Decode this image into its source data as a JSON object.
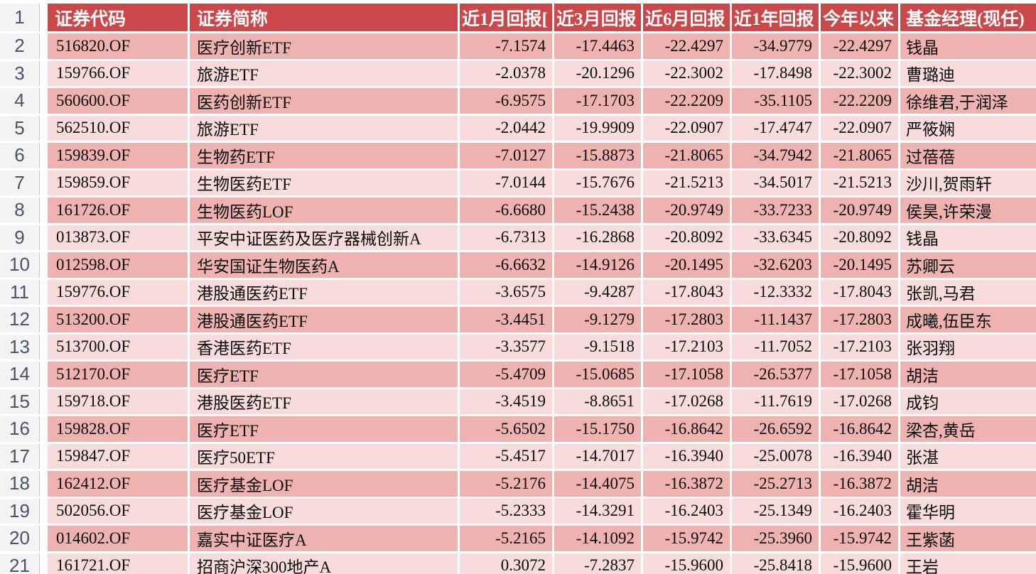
{
  "colors": {
    "header_bg": "#cb474a",
    "row_dark": "#eeb3b1",
    "row_light": "#f8dcdb",
    "gutter_bg": "#f3f3f4",
    "gutter_border": "#c9c9cb",
    "row_number_color": "#49536a"
  },
  "header_row_number": "1",
  "columns": [
    "证券代码",
    "证券简称",
    "近1月回报[",
    "近3月回报",
    "近6月回报",
    "近1年回报",
    "今年以来",
    "基金经理(现任)"
  ],
  "rows": [
    {
      "n": "2",
      "code": "516820.OF",
      "name": "医疗创新ETF",
      "m1": "-7.1574",
      "m3": "-17.4463",
      "m6": "-22.4297",
      "y1": "-34.9779",
      "ytd": "-22.4297",
      "manager": "钱晶"
    },
    {
      "n": "3",
      "code": "159766.OF",
      "name": "旅游ETF",
      "m1": "-2.0378",
      "m3": "-20.1296",
      "m6": "-22.3002",
      "y1": "-17.8498",
      "ytd": "-22.3002",
      "manager": "曹璐迪"
    },
    {
      "n": "4",
      "code": "560600.OF",
      "name": "医药创新ETF",
      "m1": "-6.9575",
      "m3": "-17.1703",
      "m6": "-22.2209",
      "y1": "-35.1105",
      "ytd": "-22.2209",
      "manager": "徐维君,于润泽"
    },
    {
      "n": "5",
      "code": "562510.OF",
      "name": "旅游ETF",
      "m1": "-2.0442",
      "m3": "-19.9909",
      "m6": "-22.0907",
      "y1": "-17.4747",
      "ytd": "-22.0907",
      "manager": "严筱娴"
    },
    {
      "n": "6",
      "code": "159839.OF",
      "name": "生物药ETF",
      "m1": "-7.0127",
      "m3": "-15.8873",
      "m6": "-21.8065",
      "y1": "-34.7942",
      "ytd": "-21.8065",
      "manager": "过蓓蓓"
    },
    {
      "n": "7",
      "code": "159859.OF",
      "name": "生物医药ETF",
      "m1": "-7.0144",
      "m3": "-15.7676",
      "m6": "-21.5213",
      "y1": "-34.5017",
      "ytd": "-21.5213",
      "manager": "沙川,贺雨轩"
    },
    {
      "n": "8",
      "code": "161726.OF",
      "name": "生物医药LOF",
      "m1": "-6.6680",
      "m3": "-15.2438",
      "m6": "-20.9749",
      "y1": "-33.7233",
      "ytd": "-20.9749",
      "manager": "侯昊,许荣漫"
    },
    {
      "n": "9",
      "code": "013873.OF",
      "name": "平安中证医药及医疗器械创新A",
      "m1": "-6.7313",
      "m3": "-16.2868",
      "m6": "-20.8092",
      "y1": "-33.6345",
      "ytd": "-20.8092",
      "manager": "钱晶"
    },
    {
      "n": "10",
      "code": "012598.OF",
      "name": "华安国证生物医药A",
      "m1": "-6.6632",
      "m3": "-14.9126",
      "m6": "-20.1495",
      "y1": "-32.6203",
      "ytd": "-20.1495",
      "manager": "苏卿云"
    },
    {
      "n": "11",
      "code": "159776.OF",
      "name": "港股通医药ETF",
      "m1": "-3.6575",
      "m3": "-9.4287",
      "m6": "-17.8043",
      "y1": "-12.3332",
      "ytd": "-17.8043",
      "manager": "张凯,马君"
    },
    {
      "n": "12",
      "code": "513200.OF",
      "name": "港股通医药ETF",
      "m1": "-3.4451",
      "m3": "-9.1279",
      "m6": "-17.2803",
      "y1": "-11.1437",
      "ytd": "-17.2803",
      "manager": "成曦,伍臣东"
    },
    {
      "n": "13",
      "code": "513700.OF",
      "name": "香港医药ETF",
      "m1": "-3.3577",
      "m3": "-9.1518",
      "m6": "-17.2103",
      "y1": "-11.7052",
      "ytd": "-17.2103",
      "manager": "张羽翔"
    },
    {
      "n": "14",
      "code": "512170.OF",
      "name": "医疗ETF",
      "m1": "-5.4709",
      "m3": "-15.0685",
      "m6": "-17.1058",
      "y1": "-26.5377",
      "ytd": "-17.1058",
      "manager": "胡洁"
    },
    {
      "n": "15",
      "code": "159718.OF",
      "name": "港股医药ETF",
      "m1": "-3.4519",
      "m3": "-8.8651",
      "m6": "-17.0268",
      "y1": "-11.7619",
      "ytd": "-17.0268",
      "manager": "成钧"
    },
    {
      "n": "16",
      "code": "159828.OF",
      "name": "医疗ETF",
      "m1": "-5.6502",
      "m3": "-15.1750",
      "m6": "-16.8642",
      "y1": "-26.6592",
      "ytd": "-16.8642",
      "manager": "梁杏,黄岳"
    },
    {
      "n": "17",
      "code": "159847.OF",
      "name": "医疗50ETF",
      "m1": "-5.4517",
      "m3": "-14.7017",
      "m6": "-16.3940",
      "y1": "-25.0078",
      "ytd": "-16.3940",
      "manager": "张湛"
    },
    {
      "n": "18",
      "code": "162412.OF",
      "name": "医疗基金LOF",
      "m1": "-5.2176",
      "m3": "-14.4075",
      "m6": "-16.3872",
      "y1": "-25.2713",
      "ytd": "-16.3872",
      "manager": "胡洁"
    },
    {
      "n": "19",
      "code": "502056.OF",
      "name": "医疗基金LOF",
      "m1": "-5.2333",
      "m3": "-14.3291",
      "m6": "-16.2403",
      "y1": "-25.1349",
      "ytd": "-16.2403",
      "manager": "霍华明"
    },
    {
      "n": "20",
      "code": "014602.OF",
      "name": "嘉实中证医疗A",
      "m1": "-5.2165",
      "m3": "-14.1092",
      "m6": "-15.9742",
      "y1": "-25.3960",
      "ytd": "-15.9742",
      "manager": "王紫菡"
    },
    {
      "n": "21",
      "code": "161721.OF",
      "name": "招商沪深300地产A",
      "m1": "0.3072",
      "m3": "-7.2837",
      "m6": "-15.9600",
      "y1": "-25.8418",
      "ytd": "-15.9600",
      "manager": "王岩"
    }
  ]
}
